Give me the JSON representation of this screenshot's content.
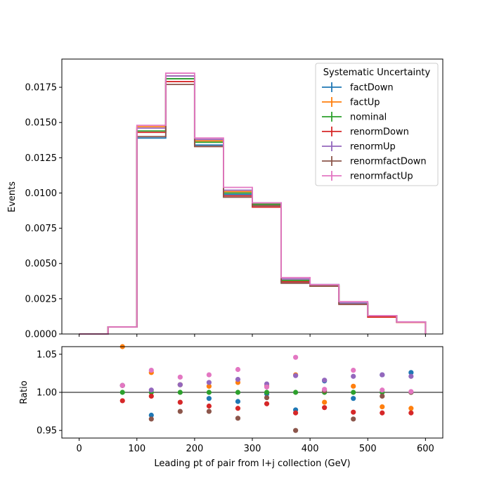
{
  "chart_data": [
    {
      "type": "line",
      "ylabel": "Events",
      "xlim": [
        -30,
        630
      ],
      "ylim": [
        0,
        0.0195
      ],
      "yticks": [
        "0.0000",
        "0.0025",
        "0.0050",
        "0.0075",
        "0.0100",
        "0.0125",
        "0.0150",
        "0.0175"
      ],
      "x_edges": [
        0,
        50,
        100,
        150,
        200,
        250,
        300,
        350,
        400,
        450,
        500,
        550,
        600
      ],
      "legend": {
        "title": "Systematic Uncertainty",
        "placement": "top-right"
      },
      "series": [
        {
          "name": "factDown",
          "color": "#1f77b4",
          "values": [
            0.0,
            0.0005,
            0.0139,
            0.0181,
            0.0134,
            0.0099,
            0.0091,
            0.0037,
            0.0035,
            0.0022,
            0.0013,
            0.00085
          ]
        },
        {
          "name": "factUp",
          "color": "#ff7f0e",
          "values": [
            0.0,
            0.0005,
            0.0147,
            0.0183,
            0.0137,
            0.0101,
            0.0092,
            0.0038,
            0.0034,
            0.0022,
            0.0012,
            0.00083
          ]
        },
        {
          "name": "nominal",
          "color": "#2ca02c",
          "values": [
            0.0,
            0.0005,
            0.0144,
            0.0181,
            0.0136,
            0.01,
            0.0092,
            0.0038,
            0.0034,
            0.0022,
            0.0013,
            0.00085
          ]
        },
        {
          "name": "renormDown",
          "color": "#d62728",
          "values": [
            0.0,
            0.0005,
            0.0143,
            0.0179,
            0.0133,
            0.0098,
            0.009,
            0.0037,
            0.0034,
            0.0021,
            0.0012,
            0.00083
          ]
        },
        {
          "name": "renormUp",
          "color": "#9467bd",
          "values": [
            0.0,
            0.0005,
            0.0146,
            0.0183,
            0.0138,
            0.0102,
            0.0093,
            0.0039,
            0.0035,
            0.0022,
            0.0013,
            0.00086
          ]
        },
        {
          "name": "renormfactDown",
          "color": "#8c564b",
          "values": [
            0.0,
            0.0005,
            0.014,
            0.0177,
            0.0133,
            0.0097,
            0.0091,
            0.0036,
            0.0034,
            0.0021,
            0.0013,
            0.00085
          ]
        },
        {
          "name": "renormfactUp",
          "color": "#e377c2",
          "values": [
            0.0,
            0.0005,
            0.0148,
            0.0185,
            0.0139,
            0.0104,
            0.0093,
            0.004,
            0.0035,
            0.0023,
            0.0013,
            0.00085
          ]
        }
      ]
    },
    {
      "type": "scatter",
      "xlabel": "Leading pt of pair from l+j collection (GeV)",
      "ylabel": "Ratio",
      "xlim": [
        -30,
        630
      ],
      "ylim": [
        0.94,
        1.06
      ],
      "xticks": [
        "0",
        "100",
        "200",
        "300",
        "400",
        "500",
        "600"
      ],
      "yticks": [
        "0.95",
        "1.00",
        "1.05"
      ],
      "reference_line": 1.0,
      "x": [
        75,
        125,
        175,
        225,
        275,
        325,
        375,
        425,
        475,
        525,
        575
      ],
      "series": [
        {
          "name": "factDown",
          "color": "#1f77b4",
          "values": [
            1.009,
            0.97,
            1.01,
            0.992,
            0.988,
            0.998,
            0.977,
            1.015,
            0.992,
            1.023,
            1.026
          ]
        },
        {
          "name": "factUp",
          "color": "#ff7f0e",
          "values": [
            1.062,
            1.026,
            1.01,
            1.008,
            1.013,
            1.008,
            1.023,
            0.987,
            1.008,
            0.981,
            0.979
          ]
        },
        {
          "name": "nominal",
          "color": "#2ca02c",
          "values": [
            1.0,
            1.0,
            1.0,
            1.0,
            1.0,
            1.0,
            1.0,
            1.0,
            1.0,
            1.0,
            1.0
          ]
        },
        {
          "name": "renormDown",
          "color": "#d62728",
          "values": [
            0.989,
            0.995,
            0.987,
            0.982,
            0.979,
            0.985,
            0.973,
            0.98,
            0.974,
            0.973,
            0.973
          ]
        },
        {
          "name": "renormUp",
          "color": "#9467bd",
          "values": [
            1.009,
            1.003,
            1.01,
            1.013,
            1.017,
            1.011,
            1.022,
            1.016,
            1.021,
            1.023,
            1.021
          ]
        },
        {
          "name": "renormfactDown",
          "color": "#8c564b",
          "values": [
            1.009,
            0.965,
            0.975,
            0.975,
            0.966,
            0.993,
            0.95,
            1.002,
            0.965,
            0.995,
            1.0
          ]
        },
        {
          "name": "renormfactUp",
          "color": "#e377c2",
          "values": [
            1.009,
            1.029,
            1.02,
            1.023,
            1.03,
            1.007,
            1.046,
            1.004,
            1.029,
            1.003,
            1.001
          ]
        }
      ]
    }
  ]
}
